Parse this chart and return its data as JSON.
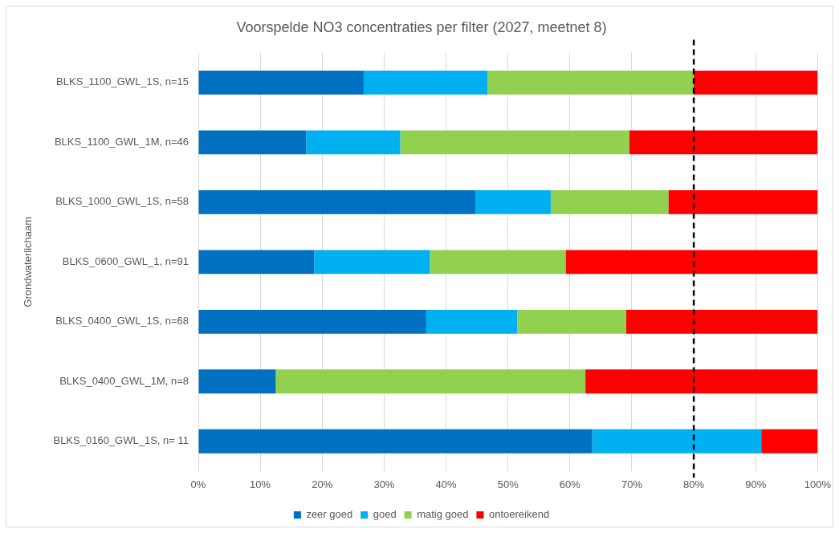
{
  "chart_data": {
    "type": "bar",
    "orientation": "horizontal",
    "stacked": true,
    "title": "Voorspelde NO3 concentraties per filter (2027, meetnet 8)",
    "ylabel": "Grondwaterlichaam",
    "categories": [
      "BLKS_1100_GWL_1S, n=15",
      "BLKS_1100_GWL_1M, n=46",
      "BLKS_1000_GWL_1S, n=58",
      "BLKS_0600_GWL_1, n=91",
      "BLKS_0400_GWL_1S, n=68",
      "BLKS_0400_GWL_1M, n=8",
      "BLKS_0160_GWL_1S, n= 11"
    ],
    "series": [
      {
        "name": "zeer goed",
        "color": "#0070c0",
        "values": [
          26.7,
          17.4,
          44.8,
          18.7,
          36.8,
          12.5,
          63.6
        ]
      },
      {
        "name": "goed",
        "color": "#00b0f0",
        "values": [
          20.0,
          15.2,
          12.1,
          18.7,
          14.7,
          0,
          27.3
        ]
      },
      {
        "name": "matig goed",
        "color": "#92d050",
        "values": [
          33.3,
          37.0,
          19.0,
          21.9,
          17.6,
          50.0,
          0
        ]
      },
      {
        "name": "ontoereikend",
        "color": "#ff0000",
        "values": [
          20.0,
          30.4,
          24.1,
          40.7,
          30.9,
          37.5,
          9.1
        ]
      }
    ],
    "xlim": [
      0,
      100
    ],
    "xticks": [
      {
        "value": 0,
        "label": "0%"
      },
      {
        "value": 10,
        "label": "10%"
      },
      {
        "value": 20,
        "label": "20%"
      },
      {
        "value": 30,
        "label": "30%"
      },
      {
        "value": 40,
        "label": "40%"
      },
      {
        "value": 50,
        "label": "50%"
      },
      {
        "value": 60,
        "label": "60%"
      },
      {
        "value": 70,
        "label": "70%"
      },
      {
        "value": 80,
        "label": "80%"
      },
      {
        "value": 90,
        "label": "90%"
      },
      {
        "value": 100,
        "label": "100%"
      }
    ],
    "grid": "x",
    "legend": "bottom",
    "ref_lines": [
      {
        "axis": "x",
        "value": 80,
        "color": "#000000",
        "line_style": "dashed"
      }
    ]
  }
}
